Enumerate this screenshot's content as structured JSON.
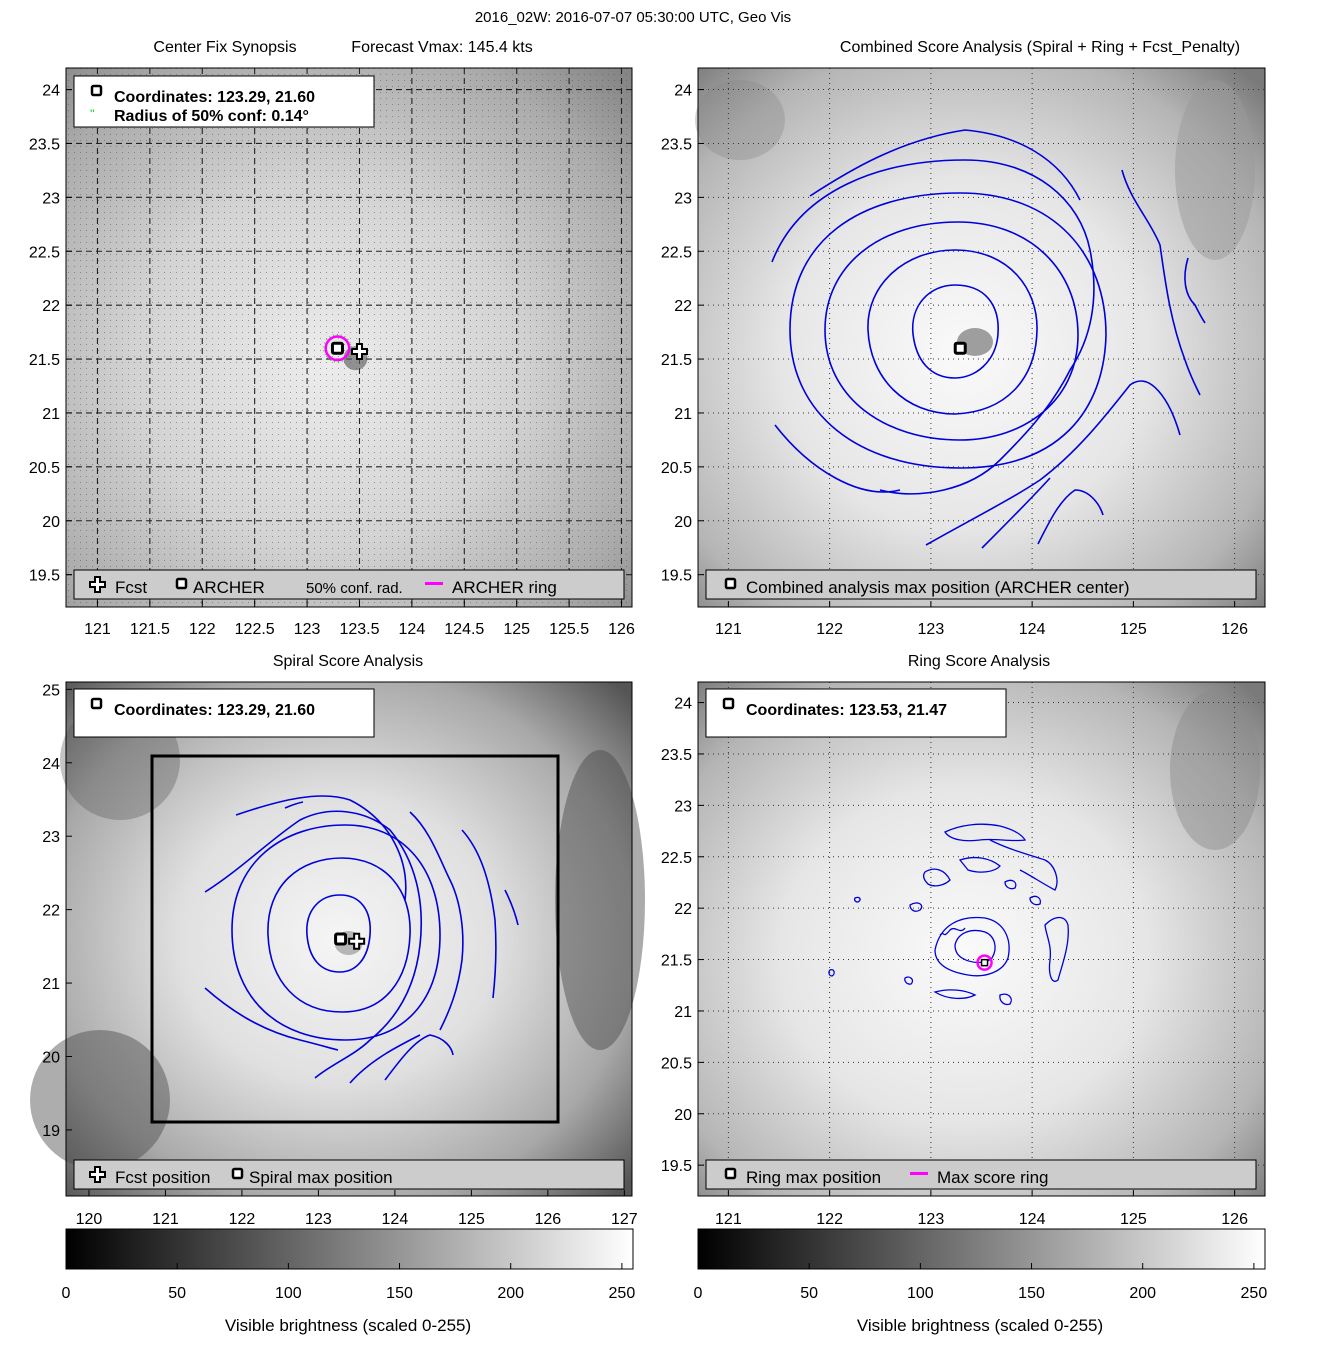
{
  "figure_title": "2016_02W: 2016-07-07 05:30:00 UTC, Geo Vis",
  "colors": {
    "contour": "#0000dd",
    "ring": "#ff00ff",
    "conf": "#00cc00",
    "legend_bg": "#cccccc"
  },
  "chart_data": [
    {
      "id": "synopsis",
      "type": "image-map",
      "title": "Center Fix Synopsis",
      "title_right": "Forecast Vmax: 145.4 kts",
      "xlim": [
        120.7,
        126.1
      ],
      "ylim": [
        19.2,
        24.2
      ],
      "xticks": [
        121,
        121.5,
        122,
        122.5,
        123,
        123.5,
        124,
        124.5,
        125,
        125.5,
        126
      ],
      "xtick_labels": [
        "121",
        "121.5",
        "122",
        "122.5",
        "123",
        "123.5",
        "124",
        "124.5",
        "125",
        "125.5",
        "126"
      ],
      "yticks": [
        19.5,
        20,
        20.5,
        21,
        21.5,
        22,
        22.5,
        23,
        23.5,
        24
      ],
      "ytick_labels": [
        "19.5",
        "20",
        "20.5",
        "21",
        "21.5",
        "22",
        "22.5",
        "23",
        "23.5",
        "24"
      ],
      "info_lines": [
        "Coordinates: 123.29, 21.60",
        "Radius of 50% conf: 0.14°"
      ],
      "legend": [
        "Fcst",
        "ARCHER",
        "50% conf. rad.",
        "ARCHER ring"
      ],
      "archer_center": [
        123.29,
        21.6
      ],
      "fcst_position": [
        123.5,
        21.57
      ],
      "conf_radius": 0.14
    },
    {
      "id": "combined",
      "type": "image-map",
      "title": "Combined Score Analysis (Spiral + Ring + Fcst_Penalty)",
      "xlim": [
        120.7,
        126.3
      ],
      "ylim": [
        19.2,
        24.2
      ],
      "xticks": [
        121,
        122,
        123,
        124,
        125,
        126
      ],
      "xtick_labels": [
        "121",
        "122",
        "123",
        "124",
        "125",
        "126"
      ],
      "yticks": [
        19.5,
        20,
        20.5,
        21,
        21.5,
        22,
        22.5,
        23,
        23.5,
        24
      ],
      "ytick_labels": [
        "19.5",
        "20",
        "20.5",
        "21",
        "21.5",
        "22",
        "22.5",
        "23",
        "23.5",
        "24"
      ],
      "legend": [
        "Combined analysis max position (ARCHER center)"
      ],
      "max_position": [
        123.29,
        21.6
      ]
    },
    {
      "id": "spiral",
      "type": "image-map",
      "title": "Spiral Score Analysis",
      "xlim": [
        119.7,
        127.1
      ],
      "ylim": [
        18.1,
        25.1
      ],
      "xticks": [
        120,
        121,
        122,
        123,
        124,
        125,
        126,
        127
      ],
      "xtick_labels": [
        "120",
        "121",
        "122",
        "123",
        "124",
        "125",
        "126",
        "127"
      ],
      "yticks": [
        19,
        20,
        21,
        22,
        23,
        24,
        25
      ],
      "ytick_labels": [
        "19",
        "20",
        "21",
        "22",
        "23",
        "24",
        "25"
      ],
      "info_lines": [
        "Coordinates: 123.29, 21.60"
      ],
      "legend": [
        "Fcst position",
        "Spiral max position"
      ],
      "search_box": [
        120.8,
        19.1,
        126.1,
        24.1
      ],
      "max_position": [
        123.29,
        21.6
      ],
      "fcst_position": [
        123.5,
        21.57
      ]
    },
    {
      "id": "ring",
      "type": "image-map",
      "title": "Ring Score Analysis",
      "xlim": [
        120.7,
        126.3
      ],
      "ylim": [
        19.2,
        24.2
      ],
      "xticks": [
        121,
        122,
        123,
        124,
        125,
        126
      ],
      "xtick_labels": [
        "121",
        "122",
        "123",
        "124",
        "125",
        "126"
      ],
      "yticks": [
        19.5,
        20,
        20.5,
        21,
        21.5,
        22,
        22.5,
        23,
        23.5,
        24
      ],
      "ytick_labels": [
        "19.5",
        "20",
        "20.5",
        "21",
        "21.5",
        "22",
        "22.5",
        "23",
        "23.5",
        "24"
      ],
      "info_lines": [
        "Coordinates: 123.53, 21.47"
      ],
      "legend": [
        "Ring max position",
        "Max score ring"
      ],
      "max_position": [
        123.53,
        21.47
      ]
    }
  ],
  "colorbars": [
    {
      "ticks": [
        0,
        50,
        100,
        150,
        200,
        250
      ],
      "range": [
        0,
        255
      ],
      "label": "Visible brightness (scaled 0-255)"
    },
    {
      "ticks": [
        0,
        50,
        100,
        150,
        200,
        250
      ],
      "range": [
        0,
        255
      ],
      "label": "Visible brightness (scaled 0-255)"
    }
  ]
}
